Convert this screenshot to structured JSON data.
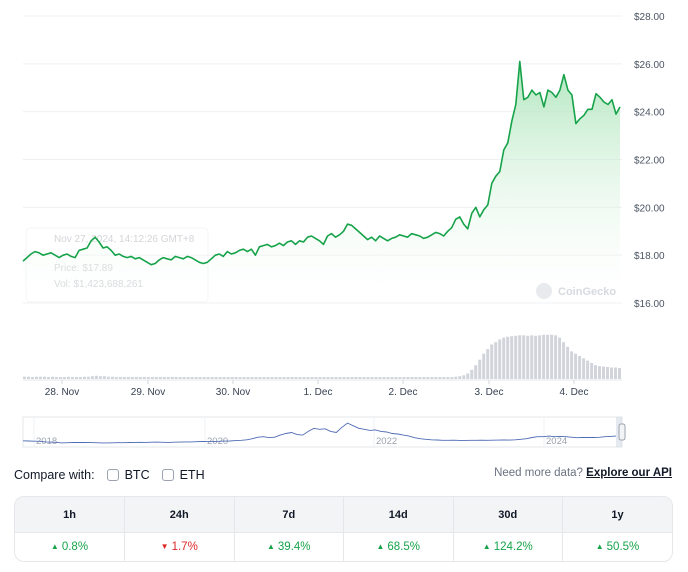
{
  "chart_data": {
    "type": "line",
    "y_ticks": [
      "$28.00",
      "$26.00",
      "$24.00",
      "$22.00",
      "$20.00",
      "$18.00",
      "$16.00"
    ],
    "y_tick_values": [
      28,
      26,
      24,
      22,
      20,
      18,
      16
    ],
    "ylim": [
      16,
      28
    ],
    "x_tick_labels": [
      "28. Nov",
      "29. Nov",
      "30. Nov",
      "1. Dec",
      "2. Dec",
      "3. Dec",
      "4. Dec"
    ],
    "grid": true,
    "series": [
      {
        "values": [
          17.75,
          17.9,
          18.05,
          18.15,
          18.1,
          18.0,
          18.05,
          18.1,
          18.0,
          17.9,
          18.0,
          18.05,
          17.95,
          17.9,
          18.2,
          18.25,
          18.3,
          18.6,
          18.75,
          18.55,
          18.3,
          18.35,
          18.2,
          18.0,
          18.05,
          17.95,
          17.9,
          17.95,
          17.85,
          17.9,
          17.8,
          17.7,
          17.6,
          17.65,
          17.8,
          17.9,
          17.85,
          17.8,
          17.95,
          17.9,
          17.85,
          17.95,
          17.9,
          17.8,
          17.7,
          17.65,
          17.7,
          17.85,
          18.0,
          18.05,
          17.95,
          18.15,
          18.05,
          18.1,
          18.2,
          18.25,
          18.15,
          18.25,
          18.0,
          18.35,
          18.4,
          18.45,
          18.35,
          18.4,
          18.5,
          18.4,
          18.55,
          18.6,
          18.45,
          18.6,
          18.55,
          18.75,
          18.8,
          18.7,
          18.6,
          18.45,
          18.8,
          18.9,
          18.75,
          18.85,
          19.0,
          19.3,
          19.25,
          19.1,
          18.95,
          18.8,
          18.65,
          18.75,
          18.6,
          18.8,
          18.7,
          18.6,
          18.7,
          18.75,
          18.85,
          18.8,
          18.75,
          18.9,
          18.85,
          18.8,
          18.7,
          18.75,
          18.85,
          18.95,
          18.9,
          18.8,
          19.0,
          19.15,
          19.5,
          19.6,
          19.3,
          19.1,
          19.75,
          20.0,
          19.6,
          19.9,
          20.1,
          21.0,
          21.3,
          21.5,
          22.4,
          22.7,
          23.6,
          24.3,
          26.1,
          24.5,
          24.6,
          24.9,
          24.7,
          24.8,
          24.2,
          24.9,
          24.8,
          24.6,
          24.9,
          25.55,
          24.9,
          24.7,
          23.5,
          23.7,
          23.85,
          24.1,
          24.1,
          24.75,
          24.6,
          24.4,
          24.3,
          24.5,
          23.9,
          24.2
        ],
        "volume": [
          0.05,
          0.05,
          0.04,
          0.05,
          0.05,
          0.05,
          0.04,
          0.05,
          0.04,
          0.04,
          0.04,
          0.05,
          0.04,
          0.04,
          0.04,
          0.05,
          0.05,
          0.06,
          0.07,
          0.06,
          0.06,
          0.05,
          0.05,
          0.04,
          0.04,
          0.04,
          0.04,
          0.04,
          0.04,
          0.04,
          0.04,
          0.04,
          0.04,
          0.04,
          0.04,
          0.04,
          0.04,
          0.04,
          0.04,
          0.04,
          0.04,
          0.04,
          0.04,
          0.04,
          0.04,
          0.04,
          0.04,
          0.04,
          0.04,
          0.04,
          0.04,
          0.04,
          0.04,
          0.04,
          0.04,
          0.04,
          0.04,
          0.04,
          0.04,
          0.04,
          0.04,
          0.04,
          0.04,
          0.04,
          0.04,
          0.04,
          0.04,
          0.04,
          0.04,
          0.04,
          0.04,
          0.04,
          0.04,
          0.04,
          0.04,
          0.04,
          0.04,
          0.04,
          0.04,
          0.04,
          0.04,
          0.04,
          0.04,
          0.04,
          0.04,
          0.04,
          0.04,
          0.04,
          0.04,
          0.04,
          0.04,
          0.04,
          0.04,
          0.04,
          0.04,
          0.04,
          0.04,
          0.04,
          0.04,
          0.04,
          0.04,
          0.04,
          0.04,
          0.04,
          0.04,
          0.04,
          0.04,
          0.04,
          0.05,
          0.06,
          0.08,
          0.12,
          0.2,
          0.3,
          0.42,
          0.55,
          0.65,
          0.75,
          0.8,
          0.86,
          0.9,
          0.92,
          0.93,
          0.94,
          0.95,
          0.95,
          0.94,
          0.95,
          0.94,
          0.95,
          0.96,
          0.96,
          0.96,
          0.95,
          0.9,
          0.8,
          0.7,
          0.6,
          0.55,
          0.5,
          0.45,
          0.4,
          0.35,
          0.3,
          0.28,
          0.27,
          0.26,
          0.25,
          0.25,
          0.24
        ]
      }
    ],
    "overview": {
      "x_tick_labels": [
        "2018",
        "2020",
        "2022",
        "2024"
      ],
      "values": [
        0.4,
        0.38,
        0.36,
        0.35,
        0.3,
        0.28,
        0.25,
        0.2,
        0.22,
        0.24,
        0.25,
        0.24,
        0.23,
        0.22,
        0.2,
        0.2,
        0.21,
        0.22,
        0.22,
        0.24,
        0.25,
        0.26,
        0.25,
        0.27,
        0.28,
        0.26,
        0.25,
        0.27,
        0.28,
        0.3,
        0.3,
        0.32,
        0.34,
        0.33,
        0.33,
        0.35,
        0.37,
        0.38,
        0.42,
        0.45,
        0.5,
        0.6,
        0.75,
        0.8,
        0.7,
        0.75,
        0.95,
        1.1,
        1.2,
        1.0,
        0.95,
        1.3,
        1.6,
        1.5,
        1.55,
        1.3,
        1.2,
        1.7,
        2.1,
        1.85,
        1.6,
        1.5,
        1.4,
        1.45,
        1.3,
        1.25,
        1.1,
        1.05,
        0.95,
        0.85,
        0.7,
        0.6,
        0.55,
        0.5,
        0.48,
        0.45,
        0.45,
        0.46,
        0.44,
        0.44,
        0.45,
        0.45,
        0.46,
        0.45,
        0.46,
        0.47,
        0.48,
        0.47,
        0.5,
        0.55,
        0.6,
        0.72,
        0.8,
        0.8,
        0.85,
        0.8,
        0.82,
        0.8,
        0.75,
        0.7,
        0.72,
        0.73,
        0.72,
        0.74,
        0.8,
        0.82,
        0.85
      ]
    },
    "tooltip": {
      "date": "Nov 27, 2024, 14:12:26 GMT+8",
      "price": "Price: $17.89",
      "vol": "Vol: $1,423,688,261"
    },
    "watermark": "CoinGecko"
  },
  "compare": {
    "label": "Compare with:",
    "options": [
      "BTC",
      "ETH"
    ]
  },
  "api": {
    "text": "Need more data?",
    "link": "Explore our API"
  },
  "performance": {
    "headers": [
      "1h",
      "24h",
      "7d",
      "14d",
      "30d",
      "1y"
    ],
    "values": [
      "0.8%",
      "1.7%",
      "39.4%",
      "68.5%",
      "124.2%",
      "50.5%"
    ],
    "direction": [
      "up",
      "down",
      "up",
      "up",
      "up",
      "up"
    ]
  },
  "colors": {
    "line": "#16a34a",
    "area_top": "#a7e3b5",
    "up": "#16a34a",
    "down": "#dc2626",
    "volume": "#d1d5db"
  }
}
